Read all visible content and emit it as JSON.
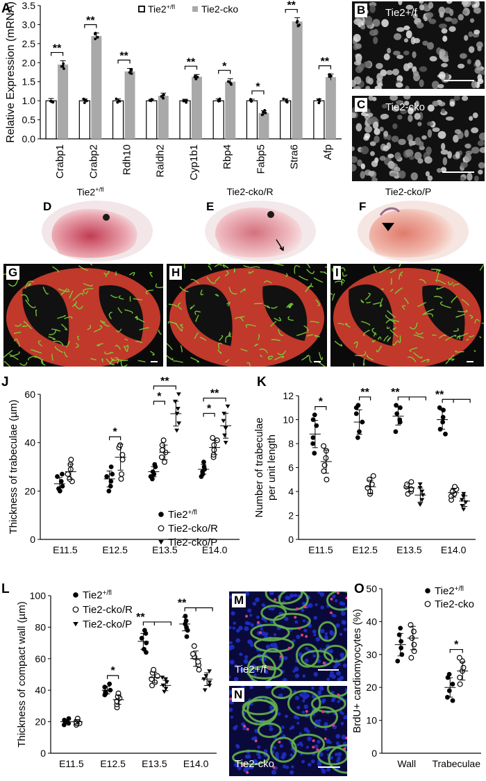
{
  "panel_letters": [
    "A",
    "B",
    "C",
    "D",
    "E",
    "F",
    "G",
    "H",
    "I",
    "J",
    "K",
    "L",
    "M",
    "N",
    "O"
  ],
  "micro_captions": {
    "B": "Tie2+/f",
    "C": "Tie2-cko",
    "M": "Tie2+/f",
    "N": "Tie2-cko"
  },
  "embryo_titles": {
    "D": "Tie2+/fl",
    "E": "Tie2-cko/R",
    "F": "Tie2-cko/P"
  },
  "colors": {
    "control_fill": "#ffffff",
    "cko_fill": "#a9a9a9",
    "micro_bg": "#111111",
    "heart_red": "#c0392b",
    "heart_green": "#7bd63a",
    "vessel_green": "#63b24a",
    "nuclei_blue": "#1e2fc8"
  },
  "chart_data": [
    {
      "panel": "A",
      "type": "bar",
      "categories": [
        "Crabp1",
        "Crabp2",
        "Rdh10",
        "Raldh2",
        "Cyp1b1",
        "Rbp4",
        "Fabp5",
        "Stra6",
        "Afp"
      ],
      "series": [
        {
          "name": "Tie2+/fl",
          "values": [
            1.0,
            1.0,
            1.0,
            1.0,
            1.0,
            1.0,
            1.0,
            1.0,
            1.0
          ],
          "errors": [
            0.06,
            0.05,
            0.05,
            0.04,
            0.04,
            0.05,
            0.04,
            0.05,
            0.05
          ]
        },
        {
          "name": "Tie2-cko",
          "values": [
            1.95,
            2.7,
            1.77,
            1.13,
            1.63,
            1.5,
            0.68,
            3.08,
            1.62
          ],
          "errors": [
            0.1,
            0.08,
            0.08,
            0.07,
            0.06,
            0.08,
            0.06,
            0.1,
            0.08
          ]
        }
      ],
      "significance": [
        "**",
        "**",
        "**",
        "",
        "**",
        "*",
        "*",
        "**",
        "**"
      ],
      "ylabel": "Relative Expression (mRNA)",
      "ylim": [
        0,
        3.5
      ],
      "yticks": [
        "0.0",
        "0.5",
        "1.0",
        "1.5",
        "2.0",
        "2.5",
        "3.0",
        "3.5"
      ],
      "legend": "top"
    },
    {
      "panel": "J",
      "type": "scatter",
      "categories": [
        "E11.5",
        "E12.5",
        "E13.5",
        "E14.0"
      ],
      "series": [
        {
          "name": "Tie2+/fl",
          "marker": "filled-circle",
          "means": [
            23,
            25,
            28,
            29
          ],
          "points": [
            [
              20,
              21,
              22,
              24,
              26,
              27
            ],
            [
              20,
              22,
              24,
              26,
              27,
              30
            ],
            [
              25,
              26,
              27,
              28,
              30,
              31
            ],
            [
              26,
              27,
              28,
              29,
              30,
              32
            ]
          ]
        },
        {
          "name": "Tie2-cko/R",
          "marker": "open-circle",
          "means": [
            28,
            34,
            36,
            38
          ],
          "points": [
            [
              24,
              25,
              27,
              29,
              31,
              33
            ],
            [
              25,
              27,
              33,
              35,
              38,
              39
            ],
            [
              32,
              34,
              36,
              37,
              39,
              41
            ],
            [
              34,
              35,
              37,
              39,
              41,
              42
            ]
          ]
        },
        {
          "name": "Tie2-cko/P",
          "marker": "triangle",
          "means": [
            null,
            null,
            52,
            47
          ],
          "points": [
            [],
            [],
            [
              45,
              48,
              52,
              54,
              57,
              60
            ],
            [
              40,
              43,
              46,
              49,
              52,
              55
            ]
          ]
        }
      ],
      "significance": [
        {
          "label": "*",
          "category": "E12.5"
        },
        {
          "label": "*",
          "category": "E13.5"
        },
        {
          "label": "**",
          "category": "E13.5"
        },
        {
          "label": "*",
          "category": "E14.0"
        },
        {
          "label": "**",
          "category": "E14.0"
        }
      ],
      "ylabel": "Thickness of trabeculae (µm)",
      "ylim": [
        0,
        60
      ],
      "yticks": [
        "0",
        "20",
        "40",
        "60"
      ],
      "legend": "bottom-right"
    },
    {
      "panel": "K",
      "type": "scatter",
      "categories": [
        "E11.5",
        "E12.5",
        "E13.5",
        "E14.0"
      ],
      "series": [
        {
          "name": "Tie2+/fl",
          "marker": "filled-circle",
          "means": [
            8.8,
            9.8,
            10.3,
            10.0
          ],
          "points": [
            [
              7.2,
              8.0,
              8.5,
              9.5,
              10.0,
              10.4
            ],
            [
              8.5,
              9.0,
              9.8,
              10.5,
              11.0,
              11.2
            ],
            [
              9.0,
              9.8,
              10.0,
              10.5,
              11.0,
              11.2
            ],
            [
              8.8,
              9.2,
              9.8,
              10.2,
              10.8,
              11.0
            ]
          ]
        },
        {
          "name": "Tie2-cko/R",
          "marker": "open-circle",
          "means": [
            6.5,
            4.4,
            4.3,
            3.9
          ],
          "points": [
            [
              5.0,
              5.7,
              6.2,
              6.8,
              7.4,
              7.8
            ],
            [
              3.8,
              4.0,
              4.3,
              4.6,
              5.0,
              5.3
            ],
            [
              3.8,
              4.0,
              4.2,
              4.4,
              4.6,
              4.8
            ],
            [
              3.3,
              3.6,
              3.8,
              4.0,
              4.2,
              4.4
            ]
          ]
        },
        {
          "name": "Tie2-cko/P",
          "marker": "triangle",
          "means": [
            null,
            null,
            3.7,
            3.2
          ],
          "points": [
            [],
            [],
            [
              2.9,
              3.3,
              3.7,
              4.0,
              4.3,
              4.6
            ],
            [
              2.5,
              2.8,
              3.1,
              3.3,
              3.6,
              3.8
            ]
          ]
        }
      ],
      "significance": [
        {
          "label": "*",
          "category": "E11.5"
        },
        {
          "label": "**",
          "category": "E12.5"
        },
        {
          "label": "**",
          "category": "E13.5"
        },
        {
          "label": "**",
          "category": "E14.0"
        }
      ],
      "ylabel": "Number of trabeculae per unit length",
      "ylabel_lines": [
        "Number of trabeculae",
        "per unit length"
      ],
      "ylim": [
        0,
        12
      ],
      "yticks": [
        "0",
        "2",
        "4",
        "6",
        "8",
        "10",
        "12"
      ]
    },
    {
      "panel": "L",
      "type": "scatter",
      "categories": [
        "E11.5",
        "E12.5",
        "E13.5",
        "E14.0"
      ],
      "series": [
        {
          "name": "Tie2+/fl",
          "marker": "filled-circle",
          "means": [
            20,
            40,
            71,
            82
          ],
          "points": [
            [
              18,
              19,
              20,
              20,
              21,
              22
            ],
            [
              37,
              38,
              39,
              40,
              42,
              44
            ],
            [
              64,
              66,
              70,
              73,
              76,
              78
            ],
            [
              74,
              78,
              80,
              82,
              84,
              87
            ]
          ]
        },
        {
          "name": "Tie2-cko/R",
          "marker": "open-circle",
          "means": [
            20,
            34,
            48,
            60
          ],
          "points": [
            [
              18,
              19,
              19,
              20,
              21,
              22
            ],
            [
              29,
              31,
              33,
              35,
              36,
              38
            ],
            [
              43,
              45,
              47,
              49,
              51,
              53
            ],
            [
              53,
              56,
              58,
              61,
              63,
              68
            ]
          ]
        },
        {
          "name": "Tie2-cko/P",
          "marker": "triangle",
          "means": [
            null,
            null,
            43,
            47
          ],
          "points": [
            [],
            [],
            [
              39,
              41,
              43,
              45,
              47,
              48
            ],
            [
              40,
              43,
              45,
              47,
              49,
              52
            ]
          ]
        }
      ],
      "significance": [
        {
          "label": "*",
          "category": "E12.5"
        },
        {
          "label": "**",
          "category": "E13.5"
        },
        {
          "label": "**",
          "category": "E14.0"
        }
      ],
      "ylabel": "Thickness of compact wall (µm)",
      "ylim": [
        0,
        100
      ],
      "yticks": [
        "0",
        "20",
        "40",
        "60",
        "80",
        "100"
      ],
      "legend": "top-left"
    },
    {
      "panel": "O",
      "type": "scatter",
      "categories": [
        "Wall",
        "Trabeculae"
      ],
      "series": [
        {
          "name": "Tie2+/fl",
          "marker": "filled-circle",
          "means": [
            33,
            20
          ],
          "points": [
            [
              28,
              30,
              32,
              34,
              36,
              38
            ],
            [
              16,
              17,
              19,
              21,
              23,
              24
            ]
          ]
        },
        {
          "name": "Tie2-cko",
          "marker": "open-circle",
          "means": [
            35,
            25
          ],
          "points": [
            [
              29,
              31,
              33,
              35,
              37,
              39
            ],
            [
              21,
              23,
              25,
              26,
              28,
              29
            ]
          ]
        }
      ],
      "significance": [
        {
          "label": "*",
          "category": "Trabeculae"
        }
      ],
      "ylabel": "BrdU+ cardiomyocytes (%)",
      "ylim": [
        0,
        50
      ],
      "yticks": [
        "0",
        "10",
        "20",
        "30",
        "40",
        "50"
      ],
      "legend": "top-right"
    }
  ]
}
